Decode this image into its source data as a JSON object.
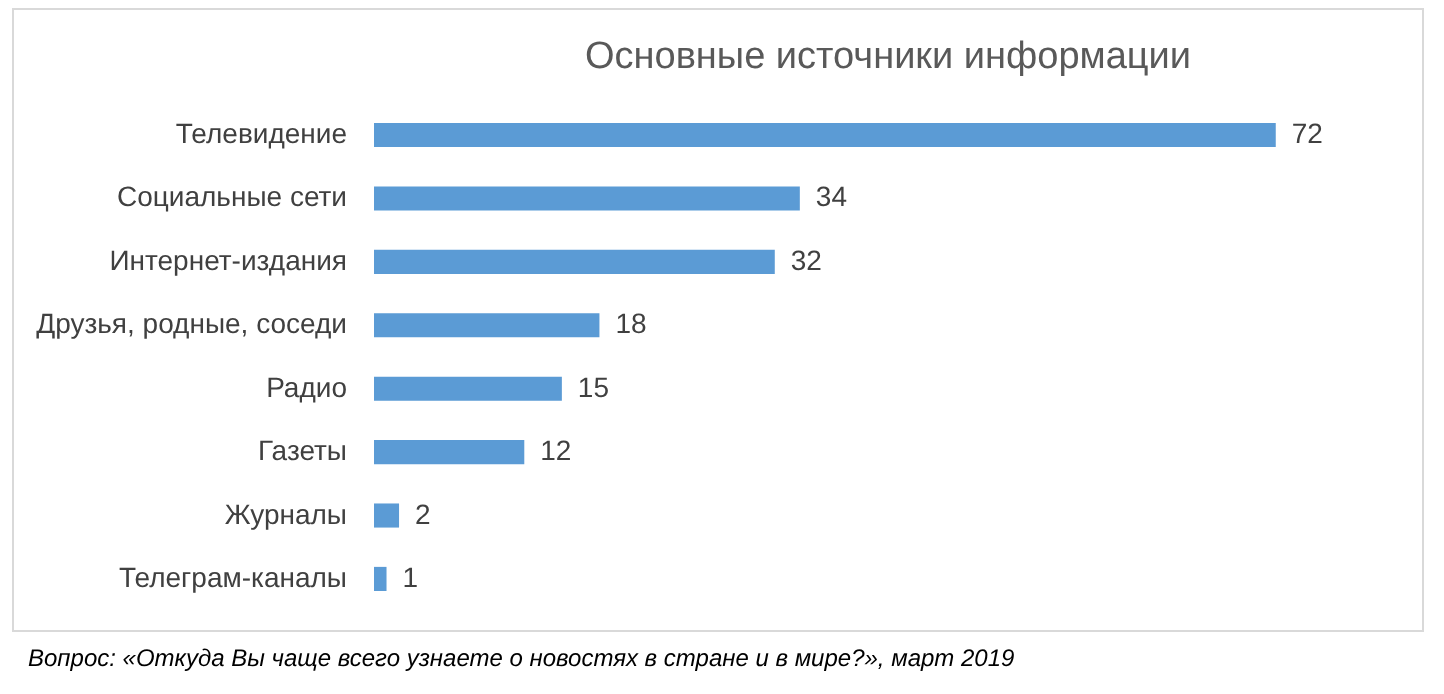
{
  "chart_data": {
    "type": "bar",
    "orientation": "horizontal",
    "title": "Основные источники информации",
    "categories": [
      "Телевидение",
      "Социальные сети",
      "Интернет-издания",
      "Друзья, родные, соседи",
      "Радио",
      "Газеты",
      "Журналы",
      "Телеграм-каналы"
    ],
    "values": [
      72,
      34,
      32,
      18,
      15,
      12,
      2,
      1
    ],
    "color": "#5b9bd5",
    "data_labels": true,
    "annotations": [
      "Вопрос: «Откуда Вы чаще всего узнаете о новостях в стране и в мире?», март 2019"
    ]
  }
}
